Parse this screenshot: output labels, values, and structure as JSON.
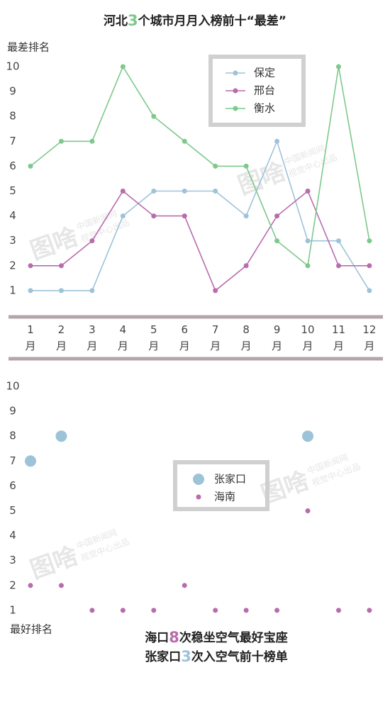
{
  "chart_data": [
    {
      "type": "line",
      "title": [
        "河北",
        "3",
        "个城市月月入榜前十“最差”"
      ],
      "title_highlight_color": "#7dc98b",
      "y_label": "最差排名",
      "categories": [
        "1月",
        "2月",
        "3月",
        "4月",
        "5月",
        "6月",
        "7月",
        "8月",
        "9月",
        "10月",
        "11月",
        "12月"
      ],
      "ylim": [
        0,
        10.5
      ],
      "yticks": [
        1,
        2,
        3,
        4,
        5,
        6,
        7,
        8,
        9,
        10
      ],
      "legend": "upper right",
      "series": [
        {
          "name": "保定",
          "color": "#9dc3d8",
          "values": [
            1,
            1,
            1,
            4,
            5,
            5,
            5,
            4,
            7,
            3,
            3,
            1
          ]
        },
        {
          "name": "邢台",
          "color": "#b86cad",
          "values": [
            2,
            2,
            3,
            5,
            4,
            4,
            1,
            2,
            4,
            5,
            2,
            2
          ]
        },
        {
          "name": "衡水",
          "color": "#7dc98b",
          "values": [
            6,
            7,
            7,
            10,
            8,
            7,
            6,
            6,
            3,
            2,
            10,
            3
          ]
        }
      ]
    },
    {
      "type": "scatter",
      "y_label": "最好排名",
      "ylim": [
        0,
        10.5
      ],
      "yticks": [
        1,
        2,
        3,
        4,
        5,
        6,
        7,
        8,
        9,
        10
      ],
      "legend": "center",
      "series": [
        {
          "name": "张家口",
          "color": "#9dc3d8",
          "values": [
            7,
            8,
            null,
            null,
            null,
            null,
            null,
            null,
            null,
            8,
            null,
            null
          ]
        },
        {
          "name": "海南",
          "color": "#b86cad",
          "values": [
            2,
            2,
            1,
            1,
            1,
            2,
            1,
            1,
            1,
            5,
            1,
            1
          ]
        }
      ],
      "annotation": [
        {
          "parts": [
            "海口",
            "8",
            "次稳坐空气最好宝座"
          ],
          "color": "#b86cad"
        },
        {
          "parts": [
            "张家口",
            "3",
            "次入空气前十榜单"
          ],
          "color": "#9dc3d8"
        }
      ]
    }
  ],
  "watermark": {
    "logo": "图啥",
    "line1": "中国新闻网",
    "line2": "视觉中心出品"
  }
}
